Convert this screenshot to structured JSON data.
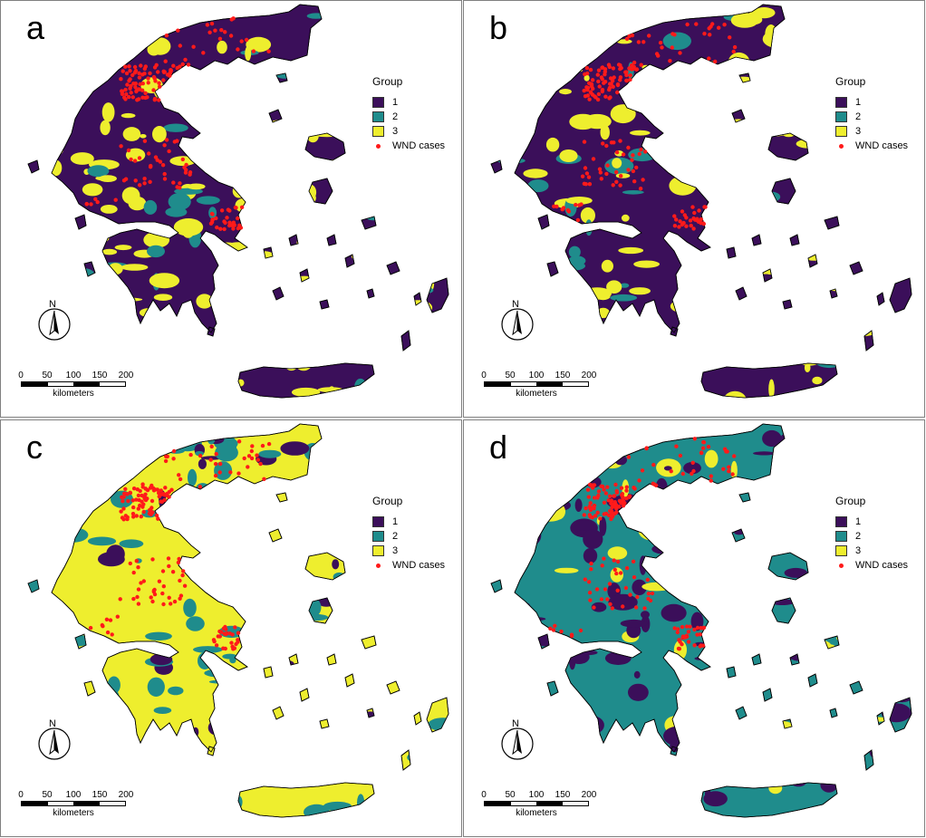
{
  "figure": {
    "panels": [
      {
        "id": "a",
        "letter": "a",
        "land_color": "#3b0f5a",
        "patch_colors": [
          "#eeee2e",
          "#1f8c8c"
        ],
        "show_cases": true
      },
      {
        "id": "b",
        "letter": "b",
        "land_color": "#3b0f5a",
        "patch_colors": [
          "#eeee2e",
          "#1f8c8c"
        ],
        "show_cases": true
      },
      {
        "id": "c",
        "letter": "c",
        "land_color": "#eeee2e",
        "patch_colors": [
          "#1f8c8c",
          "#3b0f5a"
        ],
        "show_cases": true
      },
      {
        "id": "d",
        "letter": "d",
        "land_color": "#1f8c8c",
        "patch_colors": [
          "#3b0f5a",
          "#eeee2e"
        ],
        "show_cases": true
      }
    ]
  },
  "legend": {
    "title": "Group",
    "items": [
      {
        "label": "1",
        "color": "#3b0f5a"
      },
      {
        "label": "2",
        "color": "#1f8c8c"
      },
      {
        "label": "3",
        "color": "#eeee2e"
      }
    ],
    "cases_label": "WND cases",
    "cases_color": "#ff1a1a"
  },
  "north_arrow": {
    "label": "N"
  },
  "scale_bar": {
    "ticks": [
      "0",
      "50",
      "100",
      "150",
      "200"
    ],
    "unit": "kilometers"
  }
}
